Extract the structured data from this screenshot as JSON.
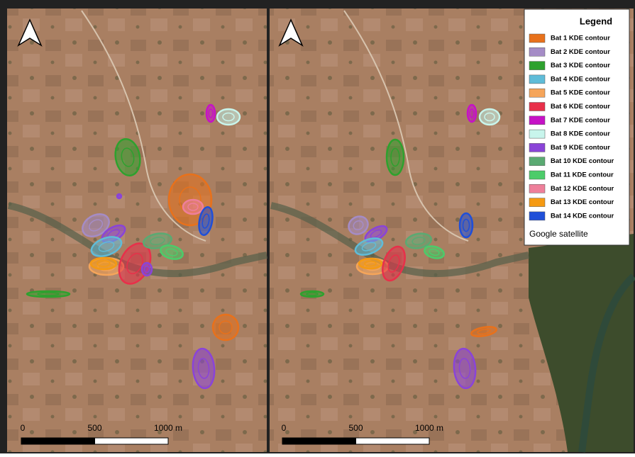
{
  "legend": {
    "title": "Legend",
    "items": [
      {
        "label": "Bat 1 KDE contour",
        "color": "#e8711b"
      },
      {
        "label": "Bat 2 KDE contour",
        "color": "#a58cc6"
      },
      {
        "label": "Bat 3 KDE contour",
        "color": "#2ea12e"
      },
      {
        "label": "Bat 4 KDE contour",
        "color": "#5fbcd8"
      },
      {
        "label": "Bat 5 KDE contour",
        "color": "#f5a55a"
      },
      {
        "label": "Bat 6 KDE contour",
        "color": "#e8304a"
      },
      {
        "label": "Bat 7 KDE contour",
        "color": "#c612c6"
      },
      {
        "label": "Bat 8 KDE contour",
        "color": "#c8f5ec"
      },
      {
        "label": "Bat 9 KDE contour",
        "color": "#8a44d8"
      },
      {
        "label": "Bat 10 KDE contour",
        "color": "#5aaa72"
      },
      {
        "label": "Bat 11 KDE contour",
        "color": "#4ccc6a"
      },
      {
        "label": "Bat 12 KDE contour",
        "color": "#ee7f9a"
      },
      {
        "label": "Bat 13 KDE contour",
        "color": "#f59a12"
      },
      {
        "label": "Bat 14 KDE contour",
        "color": "#1f4fd8"
      }
    ],
    "source": "Google satellite"
  },
  "panels": [
    {
      "scale_labels": [
        "0",
        "500",
        "1000 m"
      ]
    },
    {
      "scale_labels": [
        "0",
        "500",
        "1000 m"
      ]
    }
  ]
}
